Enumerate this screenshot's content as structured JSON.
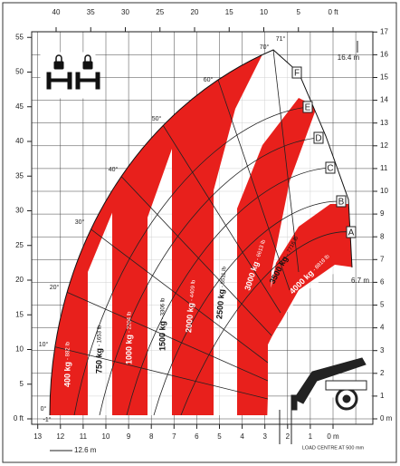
{
  "top_axis": {
    "ticks": [
      "40",
      "35",
      "30",
      "25",
      "20",
      "15",
      "10",
      "5",
      "0 ft"
    ]
  },
  "left_axis": {
    "ticks": [
      "55",
      "50",
      "45",
      "40",
      "35",
      "30",
      "25",
      "20",
      "15",
      "10",
      "5",
      "0 ft"
    ]
  },
  "right_axis": {
    "ticks": [
      "17",
      "16",
      "15",
      "14",
      "13",
      "12",
      "11",
      "10",
      "9",
      "8",
      "7",
      "6",
      "5",
      "4",
      "3",
      "2",
      "1",
      "0 m"
    ]
  },
  "bottom_axis": {
    "ticks": [
      "13",
      "12",
      "11",
      "10",
      "9",
      "8",
      "7",
      "6",
      "5",
      "4",
      "3",
      "2",
      "1",
      "0 m"
    ]
  },
  "angles": [
    "-1°",
    "0°",
    "10°",
    "20°",
    "30°",
    "40°",
    "50°",
    "60°",
    "70°",
    "71°"
  ],
  "booms": [
    "A",
    "B",
    "C",
    "D",
    "E",
    "F"
  ],
  "zones": [
    {
      "kg": "400 kg",
      "lb": "- 882 lb"
    },
    {
      "kg": "750 kg",
      "lb": "- 1653 lb"
    },
    {
      "kg": "1000 kg",
      "lb": "- 2204 lb"
    },
    {
      "kg": "1500 kg",
      "lb": "- 3306 lb"
    },
    {
      "kg": "2000 kg",
      "lb": "- 4409 lb"
    },
    {
      "kg": "2500 kg",
      "lb": "- 5511 lb"
    },
    {
      "kg": "3000 kg",
      "lb": "- 6613 lb"
    },
    {
      "kg": "3500 kg",
      "lb": "- 7716 lb"
    },
    {
      "kg": "4000 kg",
      "lb": "- 8818 lb"
    }
  ],
  "dimensions": {
    "max_height": "16.4 m",
    "max_reach_height": "6.7 m",
    "max_reach": "12.6 m",
    "load_centre": "LOAD CENTRE AT 500 mm"
  }
}
